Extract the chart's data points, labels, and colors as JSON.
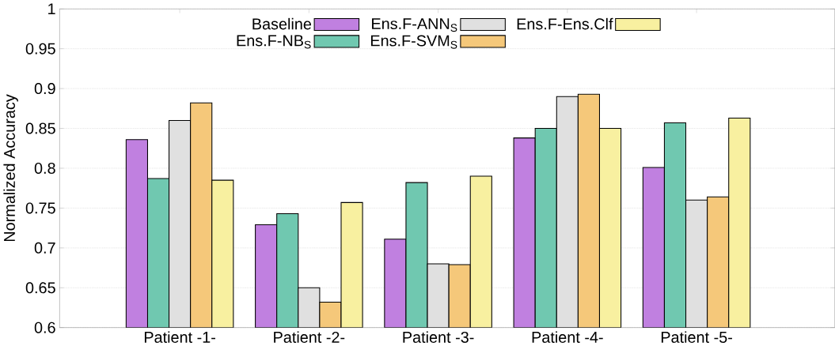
{
  "chart_data": {
    "type": "bar",
    "ylabel": "Normalized Accuracy",
    "categories": [
      "Patient -1-",
      "Patient -2-",
      "Patient -3-",
      "Patient -4-",
      "Patient -5-"
    ],
    "series": [
      {
        "name": "Baseline",
        "color": "#c080e0",
        "values": [
          0.836,
          0.729,
          0.711,
          0.838,
          0.801
        ]
      },
      {
        "name": "Ens.F-NB$_{S}$",
        "color": "#70c8b0",
        "values": [
          0.787,
          0.743,
          0.782,
          0.85,
          0.857
        ]
      },
      {
        "name": "Ens.F-ANN$_{S}$",
        "color": "#e0e0e0",
        "values": [
          0.86,
          0.65,
          0.68,
          0.89,
          0.76
        ]
      },
      {
        "name": "Ens.F-SVM$_{S}$",
        "color": "#f5c87a",
        "values": [
          0.882,
          0.632,
          0.679,
          0.893,
          0.764
        ]
      },
      {
        "name": "Ens.F-Ens.Clf",
        "color": "#f8f0a0",
        "values": [
          0.785,
          0.757,
          0.79,
          0.85,
          0.863
        ]
      }
    ],
    "ylim": [
      0.6,
      1
    ],
    "yticks": [
      0.6,
      0.65,
      0.7,
      0.75,
      0.8,
      0.85,
      0.9,
      0.95,
      1
    ],
    "grid": "y",
    "legend": "top"
  }
}
